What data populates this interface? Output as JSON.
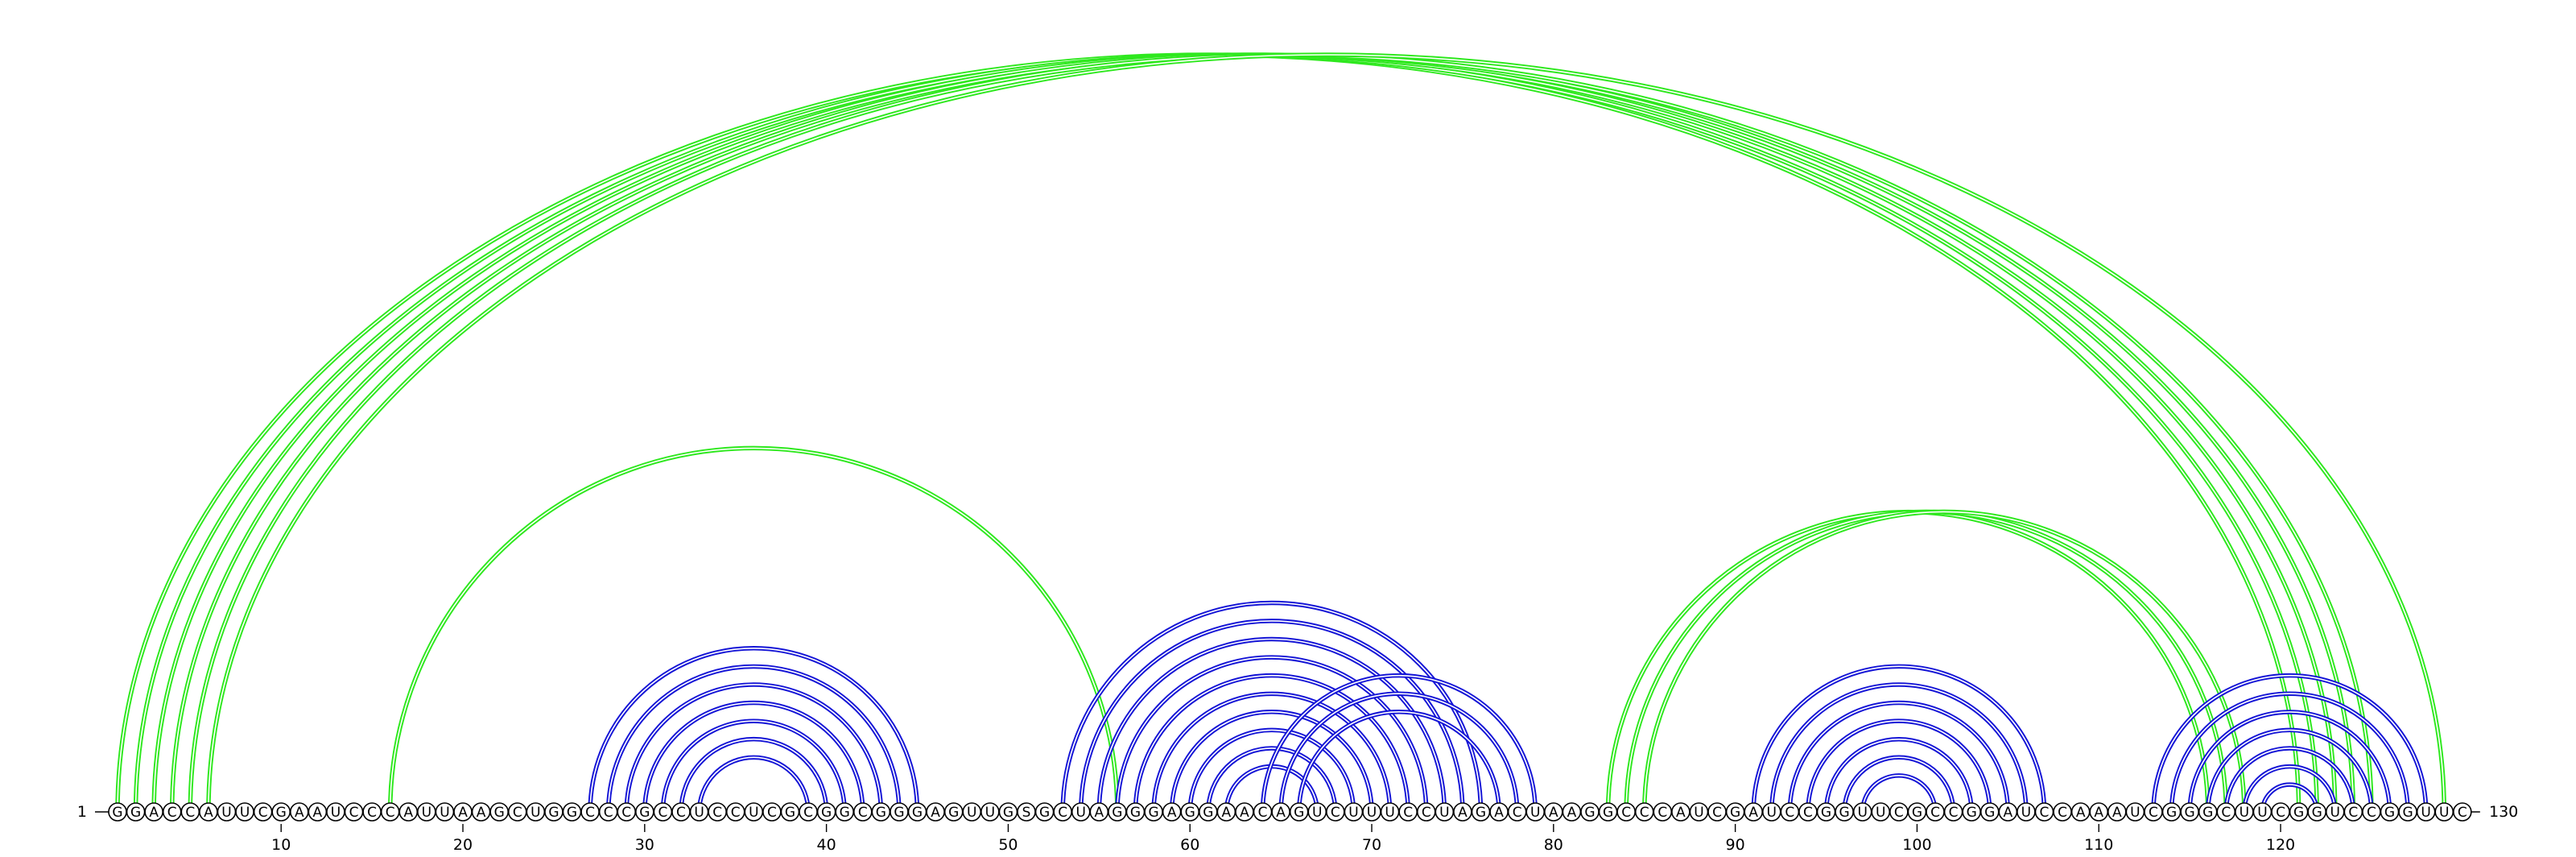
{
  "sequence": "GGACCAUUCGAAUCCCAUUAAGCUGGCCCGCCUCCUCGCGGCGGGAGUUGSGCUAGGGAGGAACAGUCUUUCCUAGACUAAGGCCCAUCGAUCCGGUUCGCCGGAUCCAAAUCGGGCUUCGGUCCGGUUC",
  "start_label": "1",
  "end_label": "130",
  "tick_labels": [
    10,
    20,
    30,
    40,
    50,
    60,
    70,
    80,
    90,
    100,
    110,
    120
  ],
  "colors": {
    "upper_arcs": "#2ee81e",
    "lower_arcs": "#1515d6",
    "bead_fill": "#ffffff"
  },
  "green_arcs": [
    {
      "i": 1,
      "j": 121
    },
    {
      "i": 2,
      "j": 122
    },
    {
      "i": 3,
      "j": 123
    },
    {
      "i": 4,
      "j": 124
    },
    {
      "i": 5,
      "j": 125
    },
    {
      "i": 6,
      "j": 129
    },
    {
      "i": 16,
      "j": 56
    },
    {
      "i": 83,
      "j": 116
    },
    {
      "i": 84,
      "j": 117
    },
    {
      "i": 85,
      "j": 118
    }
  ],
  "blue_arcs": [
    {
      "i": 27,
      "j": 45
    },
    {
      "i": 28,
      "j": 44
    },
    {
      "i": 29,
      "j": 43
    },
    {
      "i": 30,
      "j": 42
    },
    {
      "i": 31,
      "j": 41
    },
    {
      "i": 32,
      "j": 40
    },
    {
      "i": 33,
      "j": 39
    },
    {
      "i": 53,
      "j": 76
    },
    {
      "i": 54,
      "j": 75
    },
    {
      "i": 55,
      "j": 74
    },
    {
      "i": 56,
      "j": 73
    },
    {
      "i": 57,
      "j": 72
    },
    {
      "i": 58,
      "j": 71
    },
    {
      "i": 59,
      "j": 70
    },
    {
      "i": 60,
      "j": 69
    },
    {
      "i": 61,
      "j": 68
    },
    {
      "i": 62,
      "j": 67
    },
    {
      "i": 64,
      "j": 79
    },
    {
      "i": 65,
      "j": 78
    },
    {
      "i": 66,
      "j": 77
    },
    {
      "i": 91,
      "j": 107
    },
    {
      "i": 92,
      "j": 106
    },
    {
      "i": 93,
      "j": 105
    },
    {
      "i": 94,
      "j": 104
    },
    {
      "i": 95,
      "j": 103
    },
    {
      "i": 96,
      "j": 102
    },
    {
      "i": 97,
      "j": 101
    },
    {
      "i": 113,
      "j": 128
    },
    {
      "i": 114,
      "j": 127
    },
    {
      "i": 115,
      "j": 126
    },
    {
      "i": 116,
      "j": 125
    },
    {
      "i": 117,
      "j": 124
    },
    {
      "i": 118,
      "j": 123
    },
    {
      "i": 119,
      "j": 122
    }
  ]
}
